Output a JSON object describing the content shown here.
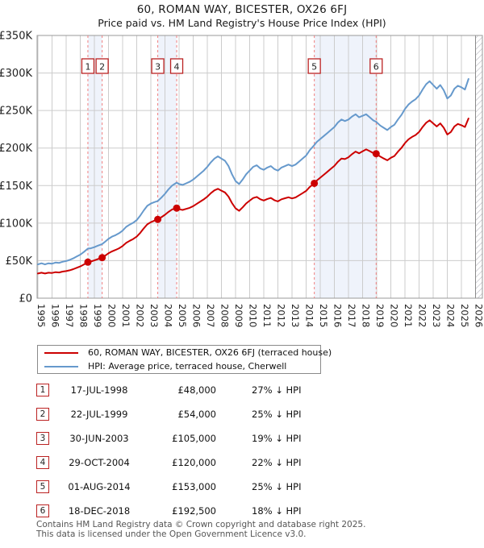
{
  "header": {
    "title": "60, ROMAN WAY, BICESTER, OX26 6FJ",
    "subtitle": "Price paid vs. HM Land Registry's House Price Index (HPI)"
  },
  "colors": {
    "property_line": "#cc0000",
    "hpi_line": "#6699cc",
    "sale_dashed_line": "#f08080",
    "shaded_band": "#e9effa",
    "gridline": "#cccccc",
    "plot_border": "#999999",
    "number_box_border": "#bb2222",
    "hatch_line": "#b8b8c0"
  },
  "chart_data": {
    "type": "line",
    "unit": "GBP thousands",
    "x_axis": {
      "min": 1995,
      "max": 2026,
      "ticks": [
        1995,
        1996,
        1997,
        1998,
        1999,
        2000,
        2001,
        2002,
        2003,
        2004,
        2005,
        2006,
        2007,
        2008,
        2009,
        2010,
        2011,
        2012,
        2013,
        2014,
        2015,
        2016,
        2017,
        2018,
        2019,
        2020,
        2021,
        2022,
        2023,
        2024,
        2025,
        2026
      ]
    },
    "y_axis": {
      "min": 0,
      "max": 350,
      "tick_step": 50,
      "tick_labels": [
        "£0",
        "£50K",
        "£100K",
        "£150K",
        "£200K",
        "£250K",
        "£300K",
        "£350K"
      ]
    },
    "grid": true,
    "legend_position": "below",
    "shaded_periods": [
      [
        1998.54,
        1999.55
      ],
      [
        2003.49,
        2004.83
      ],
      [
        2014.58,
        2018.96
      ]
    ],
    "future_hatch_start": 2026,
    "series": [
      {
        "name": "HPI: Average price, terraced house, Cherwell",
        "color": "#6699cc",
        "points": [
          [
            1995.0,
            45
          ],
          [
            1995.25,
            46.5
          ],
          [
            1995.5,
            45
          ],
          [
            1995.75,
            46.5
          ],
          [
            1996.0,
            46
          ],
          [
            1996.25,
            47.5
          ],
          [
            1996.5,
            47
          ],
          [
            1996.75,
            48.5
          ],
          [
            1997.0,
            49.5
          ],
          [
            1997.25,
            51
          ],
          [
            1997.5,
            53
          ],
          [
            1997.75,
            55.5
          ],
          [
            1998.0,
            58
          ],
          [
            1998.25,
            61.5
          ],
          [
            1998.54,
            66
          ],
          [
            1998.75,
            66.5
          ],
          [
            1999.0,
            68
          ],
          [
            1999.25,
            70
          ],
          [
            1999.55,
            72
          ],
          [
            1999.75,
            75
          ],
          [
            2000.0,
            79
          ],
          [
            2000.25,
            82
          ],
          [
            2000.5,
            84
          ],
          [
            2000.75,
            86.5
          ],
          [
            2001.0,
            90
          ],
          [
            2001.25,
            95
          ],
          [
            2001.5,
            98
          ],
          [
            2001.75,
            100.5
          ],
          [
            2002.0,
            104
          ],
          [
            2002.25,
            110
          ],
          [
            2002.5,
            117
          ],
          [
            2002.75,
            123
          ],
          [
            2003.0,
            126
          ],
          [
            2003.25,
            128
          ],
          [
            2003.49,
            129.5
          ],
          [
            2003.75,
            134
          ],
          [
            2004.0,
            139
          ],
          [
            2004.25,
            145
          ],
          [
            2004.5,
            150
          ],
          [
            2004.83,
            154
          ],
          [
            2005.0,
            152
          ],
          [
            2005.25,
            151
          ],
          [
            2005.5,
            153
          ],
          [
            2005.75,
            155
          ],
          [
            2006.0,
            158
          ],
          [
            2006.25,
            162
          ],
          [
            2006.5,
            166
          ],
          [
            2006.75,
            170
          ],
          [
            2007.0,
            175
          ],
          [
            2007.25,
            181
          ],
          [
            2007.5,
            186
          ],
          [
            2007.75,
            189
          ],
          [
            2008.0,
            186
          ],
          [
            2008.25,
            183
          ],
          [
            2008.5,
            176
          ],
          [
            2008.75,
            165
          ],
          [
            2009.0,
            156
          ],
          [
            2009.25,
            152
          ],
          [
            2009.5,
            158
          ],
          [
            2009.75,
            165
          ],
          [
            2010.0,
            170
          ],
          [
            2010.25,
            175
          ],
          [
            2010.5,
            177
          ],
          [
            2010.75,
            173
          ],
          [
            2011.0,
            171
          ],
          [
            2011.25,
            174
          ],
          [
            2011.5,
            176
          ],
          [
            2011.75,
            172
          ],
          [
            2012.0,
            170
          ],
          [
            2012.25,
            174
          ],
          [
            2012.5,
            176
          ],
          [
            2012.75,
            178
          ],
          [
            2013.0,
            176
          ],
          [
            2013.25,
            178
          ],
          [
            2013.5,
            182
          ],
          [
            2013.75,
            186
          ],
          [
            2014.0,
            190
          ],
          [
            2014.25,
            197
          ],
          [
            2014.58,
            204
          ],
          [
            2014.75,
            208
          ],
          [
            2015.0,
            212
          ],
          [
            2015.25,
            216
          ],
          [
            2015.5,
            220
          ],
          [
            2015.75,
            224
          ],
          [
            2016.0,
            228
          ],
          [
            2016.25,
            234
          ],
          [
            2016.5,
            238
          ],
          [
            2016.75,
            236
          ],
          [
            2017.0,
            238
          ],
          [
            2017.25,
            242
          ],
          [
            2017.5,
            245
          ],
          [
            2017.75,
            241
          ],
          [
            2018.0,
            243
          ],
          [
            2018.25,
            245
          ],
          [
            2018.5,
            241
          ],
          [
            2018.75,
            237
          ],
          [
            2018.96,
            235
          ],
          [
            2019.25,
            230
          ],
          [
            2019.5,
            227
          ],
          [
            2019.75,
            224
          ],
          [
            2020.0,
            228
          ],
          [
            2020.25,
            231
          ],
          [
            2020.5,
            238
          ],
          [
            2020.75,
            244
          ],
          [
            2021.0,
            252
          ],
          [
            2021.25,
            258
          ],
          [
            2021.5,
            262
          ],
          [
            2021.75,
            265
          ],
          [
            2022.0,
            270
          ],
          [
            2022.25,
            278
          ],
          [
            2022.5,
            285
          ],
          [
            2022.75,
            289
          ],
          [
            2023.0,
            284
          ],
          [
            2023.25,
            279
          ],
          [
            2023.5,
            284
          ],
          [
            2023.75,
            277
          ],
          [
            2024.0,
            266
          ],
          [
            2024.25,
            270
          ],
          [
            2024.5,
            279
          ],
          [
            2024.75,
            283
          ],
          [
            2025.0,
            281
          ],
          [
            2025.25,
            278
          ],
          [
            2025.5,
            292
          ]
        ]
      },
      {
        "name": "60, ROMAN WAY, BICESTER, OX26 6FJ (terraced house)",
        "color": "#cc0000",
        "points": [
          [
            1995.0,
            32.9
          ],
          [
            1995.25,
            33.9
          ],
          [
            1995.5,
            32.9
          ],
          [
            1995.75,
            33.9
          ],
          [
            1996.0,
            33.6
          ],
          [
            1996.25,
            34.7
          ],
          [
            1996.5,
            34.3
          ],
          [
            1996.75,
            35.4
          ],
          [
            1997.0,
            36.1
          ],
          [
            1997.25,
            37.2
          ],
          [
            1997.5,
            38.7
          ],
          [
            1997.75,
            40.5
          ],
          [
            1998.0,
            42.3
          ],
          [
            1998.25,
            44.9
          ],
          [
            1998.54,
            48
          ],
          [
            1998.75,
            48.9
          ],
          [
            1999.0,
            50.3
          ],
          [
            1999.25,
            52.1
          ],
          [
            1999.55,
            54
          ],
          [
            1999.75,
            56.5
          ],
          [
            2000.0,
            59.8
          ],
          [
            2000.25,
            62.4
          ],
          [
            2000.5,
            64.3
          ],
          [
            2000.75,
            66.5
          ],
          [
            2001.0,
            69.5
          ],
          [
            2001.25,
            73.7
          ],
          [
            2001.5,
            76.4
          ],
          [
            2001.75,
            78.8
          ],
          [
            2002.0,
            82
          ],
          [
            2002.25,
            87.1
          ],
          [
            2002.5,
            93.1
          ],
          [
            2002.75,
            98.3
          ],
          [
            2003.0,
            101.2
          ],
          [
            2003.25,
            103.3
          ],
          [
            2003.49,
            105
          ],
          [
            2003.75,
            107.9
          ],
          [
            2004.0,
            111.1
          ],
          [
            2004.25,
            115
          ],
          [
            2004.5,
            118.2
          ],
          [
            2004.83,
            120
          ],
          [
            2005.0,
            118.4
          ],
          [
            2005.25,
            117.6
          ],
          [
            2005.5,
            119
          ],
          [
            2005.75,
            120.4
          ],
          [
            2006.0,
            122.6
          ],
          [
            2006.25,
            125.7
          ],
          [
            2006.5,
            128.7
          ],
          [
            2006.75,
            131.6
          ],
          [
            2007.0,
            135.3
          ],
          [
            2007.25,
            139.9
          ],
          [
            2007.5,
            143.6
          ],
          [
            2007.75,
            145.7
          ],
          [
            2008.0,
            143.2
          ],
          [
            2008.25,
            140.9
          ],
          [
            2008.5,
            135.3
          ],
          [
            2008.75,
            126.7
          ],
          [
            2009.0,
            119.7
          ],
          [
            2009.25,
            116.4
          ],
          [
            2009.5,
            121
          ],
          [
            2009.75,
            126.2
          ],
          [
            2010.0,
            129.9
          ],
          [
            2010.25,
            133.5
          ],
          [
            2010.5,
            134.9
          ],
          [
            2010.75,
            131.8
          ],
          [
            2011.0,
            130.1
          ],
          [
            2011.25,
            132.2
          ],
          [
            2011.5,
            133.6
          ],
          [
            2011.75,
            130.5
          ],
          [
            2012.0,
            128.9
          ],
          [
            2012.25,
            131.7
          ],
          [
            2012.5,
            133.1
          ],
          [
            2012.75,
            134.4
          ],
          [
            2013.0,
            132.9
          ],
          [
            2013.25,
            134.2
          ],
          [
            2013.5,
            137.1
          ],
          [
            2013.75,
            139.9
          ],
          [
            2014.0,
            142.9
          ],
          [
            2014.25,
            148
          ],
          [
            2014.58,
            153
          ],
          [
            2014.75,
            156.6
          ],
          [
            2015.0,
            160.5
          ],
          [
            2015.25,
            164.4
          ],
          [
            2015.5,
            168.3
          ],
          [
            2015.75,
            172.3
          ],
          [
            2016.0,
            176.2
          ],
          [
            2016.25,
            181.8
          ],
          [
            2016.5,
            185.9
          ],
          [
            2016.75,
            185.3
          ],
          [
            2017.0,
            187.8
          ],
          [
            2017.25,
            191.9
          ],
          [
            2017.5,
            195.3
          ],
          [
            2017.75,
            193
          ],
          [
            2018.0,
            195.6
          ],
          [
            2018.25,
            198.2
          ],
          [
            2018.5,
            195.9
          ],
          [
            2018.75,
            193.4
          ],
          [
            2018.96,
            192.5
          ],
          [
            2019.25,
            188.6
          ],
          [
            2019.5,
            186.1
          ],
          [
            2019.75,
            183.7
          ],
          [
            2020.0,
            187
          ],
          [
            2020.25,
            189.4
          ],
          [
            2020.5,
            195.2
          ],
          [
            2020.75,
            200.1
          ],
          [
            2021.0,
            206.6
          ],
          [
            2021.25,
            211.6
          ],
          [
            2021.5,
            214.8
          ],
          [
            2021.75,
            217.3
          ],
          [
            2022.0,
            221.4
          ],
          [
            2022.25,
            228
          ],
          [
            2022.5,
            233.7
          ],
          [
            2022.75,
            237
          ],
          [
            2023.0,
            232.9
          ],
          [
            2023.25,
            228.8
          ],
          [
            2023.5,
            232.9
          ],
          [
            2023.75,
            227.1
          ],
          [
            2024.0,
            218.1
          ],
          [
            2024.25,
            221.4
          ],
          [
            2024.5,
            228.8
          ],
          [
            2024.75,
            232.1
          ],
          [
            2025.0,
            230.4
          ],
          [
            2025.25,
            228
          ],
          [
            2025.5,
            239.4
          ]
        ]
      }
    ],
    "sales": [
      {
        "num": "1",
        "x": 1998.54,
        "value": 48
      },
      {
        "num": "2",
        "x": 1999.55,
        "value": 54
      },
      {
        "num": "3",
        "x": 2003.49,
        "value": 105
      },
      {
        "num": "4",
        "x": 2004.83,
        "value": 120
      },
      {
        "num": "5",
        "x": 2014.58,
        "value": 153
      },
      {
        "num": "6",
        "x": 2018.96,
        "value": 192.5
      }
    ]
  },
  "legend": {
    "items": [
      {
        "label": "60, ROMAN WAY, BICESTER, OX26 6FJ (terraced house)",
        "color": "#cc0000"
      },
      {
        "label": "HPI: Average price, terraced house, Cherwell",
        "color": "#6699cc"
      }
    ]
  },
  "table": {
    "rows": [
      {
        "num": "1",
        "date": "17-JUL-1998",
        "price": "£48,000",
        "pct": "27% ↓ HPI"
      },
      {
        "num": "2",
        "date": "22-JUL-1999",
        "price": "£54,000",
        "pct": "25% ↓ HPI"
      },
      {
        "num": "3",
        "date": "30-JUN-2003",
        "price": "£105,000",
        "pct": "19% ↓ HPI"
      },
      {
        "num": "4",
        "date": "29-OCT-2004",
        "price": "£120,000",
        "pct": "22% ↓ HPI"
      },
      {
        "num": "5",
        "date": "01-AUG-2014",
        "price": "£153,000",
        "pct": "25% ↓ HPI"
      },
      {
        "num": "6",
        "date": "18-DEC-2018",
        "price": "£192,500",
        "pct": "18% ↓ HPI"
      }
    ]
  },
  "footer": {
    "line1": "Contains HM Land Registry data © Crown copyright and database right 2025.",
    "line2": "This data is licensed under the Open Government Licence v3.0."
  }
}
